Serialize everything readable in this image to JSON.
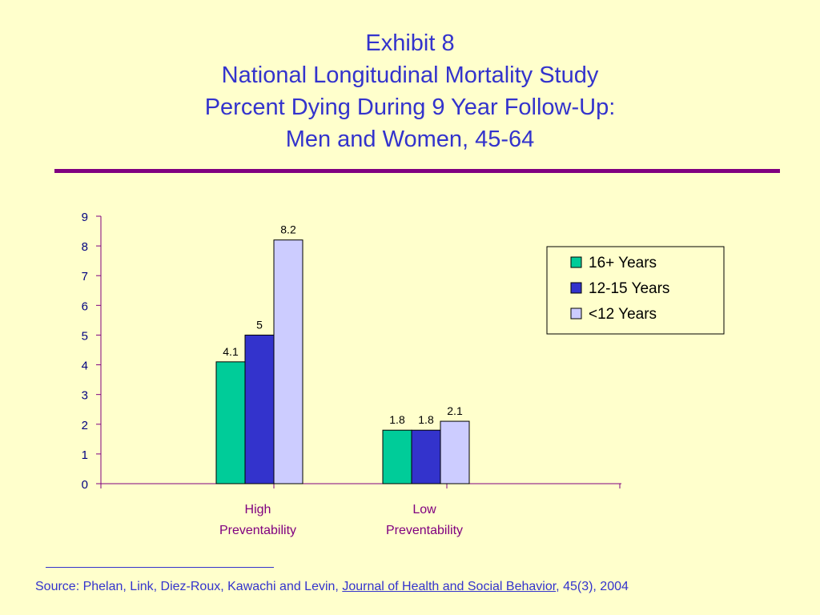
{
  "title_lines": [
    "Exhibit 8",
    "National Longitudinal Mortality Study",
    "Percent Dying During 9 Year Follow-Up:",
    "Men and Women, 45-64"
  ],
  "colors": {
    "background": "#ffffcc",
    "title": "#3333cc",
    "rule": "#800080",
    "axis_labels": "#800080"
  },
  "chart_data": {
    "type": "bar",
    "categories": [
      [
        "High",
        "Preventability"
      ],
      [
        "Low",
        "Preventability"
      ]
    ],
    "series": [
      {
        "name": "16+ Years",
        "color": "#00cc99",
        "values": [
          4.1,
          1.8
        ],
        "labels": [
          "4.1",
          "1.8"
        ]
      },
      {
        "name": "12-15 Years",
        "color": "#3333cc",
        "values": [
          5,
          1.8
        ],
        "labels": [
          "5",
          "1.8"
        ]
      },
      {
        "name": "<12 Years",
        "color": "#ccccff",
        "values": [
          8.2,
          2.1
        ],
        "labels": [
          "8.2",
          "2.1"
        ]
      }
    ],
    "ylim": [
      0,
      9
    ],
    "yticks": [
      "0",
      "1",
      "2",
      "3",
      "4",
      "5",
      "6",
      "7",
      "8",
      "9"
    ],
    "title": "",
    "xlabel": "",
    "ylabel": "",
    "grid": false,
    "legend_position": "top-right"
  },
  "source": {
    "prefix": "Source:  Phelan, Link, Diez-Roux, Kawachi and Levin, ",
    "journal": "Journal of Health and Social Behavior",
    "suffix": ", 45(3),  2004"
  }
}
